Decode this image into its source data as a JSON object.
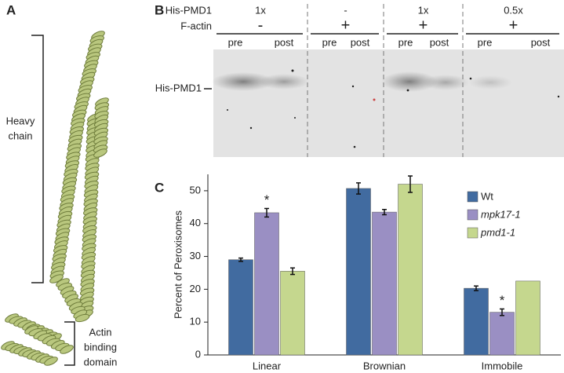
{
  "panel_a": {
    "label": "A",
    "heavy_chain": [
      "Heavy",
      "chain"
    ],
    "actin_domain": [
      "Actin",
      "binding",
      "domain"
    ]
  },
  "panel_b": {
    "label": "B",
    "row_labels": [
      "His-PMD1",
      "F-actin"
    ],
    "lanes": [
      {
        "his_pmd1": "1x",
        "f_actin": "-",
        "pre": "pre",
        "post": "post"
      },
      {
        "his_pmd1": "-",
        "f_actin": "+",
        "pre": "pre",
        "post": "post"
      },
      {
        "his_pmd1": "1x",
        "f_actin": "+",
        "pre": "pre",
        "post": "post"
      },
      {
        "his_pmd1": "0.5x",
        "f_actin": "+",
        "pre": "pre",
        "post": "post"
      }
    ],
    "band_label": "His-PMD1"
  },
  "chart_data": {
    "type": "bar",
    "panel_label": "C",
    "y_label": "Percent of Peroxisomes",
    "categories": [
      "Linear",
      "Brownian",
      "Immobile"
    ],
    "series": [
      {
        "name": "Wt",
        "color": "#416ba0",
        "values": [
          29,
          50.7,
          20.3
        ],
        "errors": [
          0.5,
          1.7,
          0.7
        ]
      },
      {
        "name": "mpk17-1",
        "color": "#9a8fc3",
        "values": [
          43.3,
          43.5,
          13
        ],
        "errors": [
          1.3,
          0.8,
          1
        ]
      },
      {
        "name": "pmd1-1",
        "color": "#c5d78e",
        "values": [
          25.5,
          52,
          22.5
        ],
        "errors": [
          1,
          2.5,
          null
        ]
      }
    ],
    "annotations": [
      {
        "text": "*",
        "series": 1,
        "category": 0
      },
      {
        "text": "*",
        "series": 1,
        "category": 2
      }
    ],
    "ylim": [
      0,
      55
    ],
    "yticks": [
      0,
      10,
      20,
      30,
      40,
      50
    ],
    "legend": "upper right",
    "grid": false
  }
}
